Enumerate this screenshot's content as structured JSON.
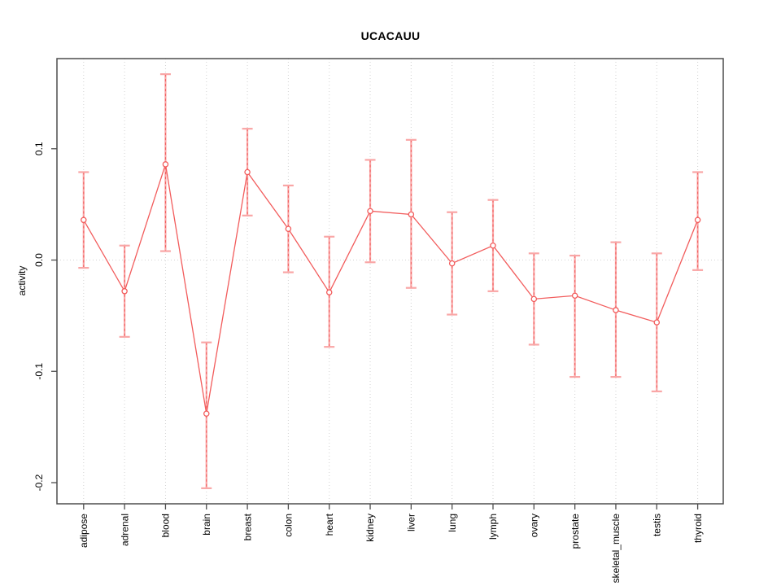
{
  "chart_data": {
    "type": "line",
    "title": "UCACAUU",
    "ylabel": "activity",
    "xlabel": "",
    "legend_position": "none",
    "grid": "vertical dotted line at each category; horizontal dotted line at 0",
    "categories": [
      "adipose",
      "adrenal",
      "blood",
      "brain",
      "breast",
      "colon",
      "heart",
      "kidney",
      "liver",
      "lung",
      "lymph",
      "ovary",
      "prostate",
      "skeletal_muscle",
      "testis",
      "thyroid"
    ],
    "series": [
      {
        "name": "activity",
        "values": [
          0.036,
          -0.028,
          0.086,
          -0.138,
          0.079,
          0.028,
          -0.029,
          0.044,
          0.041,
          -0.003,
          0.013,
          -0.035,
          -0.032,
          -0.045,
          -0.056,
          0.036
        ],
        "error_upper": [
          0.079,
          0.013,
          0.167,
          -0.074,
          0.118,
          0.067,
          0.021,
          0.09,
          0.108,
          0.043,
          0.054,
          0.006,
          0.004,
          0.016,
          0.006,
          0.079
        ],
        "error_lower": [
          -0.007,
          -0.069,
          0.008,
          -0.205,
          0.04,
          -0.011,
          -0.078,
          -0.002,
          -0.025,
          -0.049,
          -0.028,
          -0.076,
          -0.105,
          -0.105,
          -0.118,
          -0.009
        ]
      }
    ],
    "yticks": [
      {
        "label": "0.1",
        "value": 0.1
      },
      {
        "label": "0.0",
        "value": 0.0
      },
      {
        "label": "-0.1",
        "value": -0.1
      },
      {
        "label": "-0.2",
        "value": -0.2
      }
    ],
    "ylim": [
      -0.219,
      0.181
    ],
    "colors": {
      "line": "#f25c5c",
      "point": "#f25c5c",
      "error_bar": "#f9a6a6",
      "error_bar_dash": "#f25c5c",
      "grid": "#d2d2d2",
      "axis": "#4d4d4d",
      "text": "#000000",
      "background": "#ffffff"
    }
  }
}
